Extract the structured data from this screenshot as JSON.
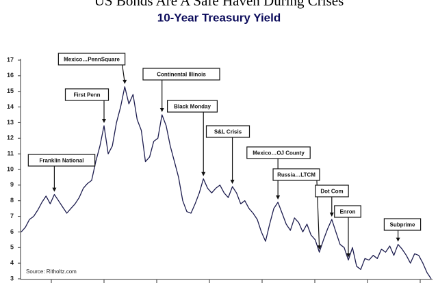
{
  "chart_data": {
    "type": "line",
    "title": "US Bonds Are A Safe Haven During Crises",
    "subtitle": "10-Year Treasury Yield",
    "source": "Source: Ritholtz.com",
    "categories": [
      null,
      null,
      null,
      null,
      null,
      null,
      null,
      null,
      null,
      null,
      null,
      null,
      null,
      null,
      null,
      null,
      null,
      null,
      null,
      null,
      null,
      null,
      null,
      null,
      null,
      null,
      null,
      null,
      null,
      null,
      null,
      null,
      null,
      null,
      null,
      null,
      null,
      null,
      null,
      null,
      null,
      null,
      null,
      null,
      null,
      null,
      null,
      null,
      null,
      null,
      null,
      null,
      null,
      null,
      null,
      null,
      null,
      null,
      null,
      null,
      null,
      null,
      null,
      null,
      null,
      null,
      null,
      null,
      null,
      null,
      null,
      null,
      null,
      null,
      null,
      null,
      null,
      null,
      null,
      null,
      null,
      null,
      null,
      null,
      null,
      null,
      null,
      null,
      null,
      null,
      null,
      null,
      null,
      null,
      null,
      null,
      null,
      null,
      null,
      null
    ],
    "values": [
      6.0,
      6.3,
      6.8,
      7.0,
      7.4,
      7.9,
      8.3,
      7.8,
      8.4,
      8.0,
      7.6,
      7.2,
      7.5,
      7.8,
      8.2,
      8.8,
      9.1,
      9.3,
      10.5,
      11.5,
      12.8,
      11.0,
      11.5,
      13.0,
      14.0,
      15.3,
      14.2,
      14.8,
      13.2,
      12.5,
      10.5,
      10.8,
      11.8,
      12.0,
      13.5,
      12.8,
      11.5,
      10.5,
      9.5,
      8.0,
      7.3,
      7.2,
      7.8,
      8.5,
      9.4,
      8.8,
      8.5,
      8.8,
      9.0,
      8.5,
      8.2,
      8.9,
      8.5,
      7.8,
      8.0,
      7.5,
      7.2,
      6.8,
      6.0,
      5.4,
      6.5,
      7.5,
      7.9,
      7.2,
      6.5,
      6.1,
      6.9,
      6.6,
      6.0,
      6.5,
      5.8,
      5.5,
      4.7,
      5.5,
      6.2,
      6.8,
      6.0,
      5.2,
      5.0,
      4.2,
      5.0,
      3.8,
      3.6,
      4.3,
      4.2,
      4.5,
      4.3,
      4.9,
      4.7,
      5.1,
      4.5,
      5.2,
      4.9,
      4.5,
      4.0,
      4.6,
      4.5,
      4.0,
      3.4,
      3.0
    ],
    "color": "#1c1c4e",
    "ylim": [
      3,
      17
    ],
    "yticks": [
      3,
      4,
      5,
      6,
      7,
      8,
      9,
      10,
      11,
      12,
      13,
      14,
      15,
      16,
      17
    ],
    "grid": false,
    "annotations": [
      {
        "text": "Franklin National",
        "x": 8
      },
      {
        "text": "First Penn",
        "x": 20
      },
      {
        "text": "Mexico…PennSquare",
        "x": 25
      },
      {
        "text": "Continental Illinois",
        "x": 34
      },
      {
        "text": "Black Monday",
        "x": 44
      },
      {
        "text": "S&L Crisis",
        "x": 51
      },
      {
        "text": "Mexico…OJ County",
        "x": 62
      },
      {
        "text": "Russia…LTCM",
        "x": 72
      },
      {
        "text": "Dot Com",
        "x": 75
      },
      {
        "text": "Enron",
        "x": 79
      },
      {
        "text": "Subprime",
        "x": 91
      }
    ]
  }
}
